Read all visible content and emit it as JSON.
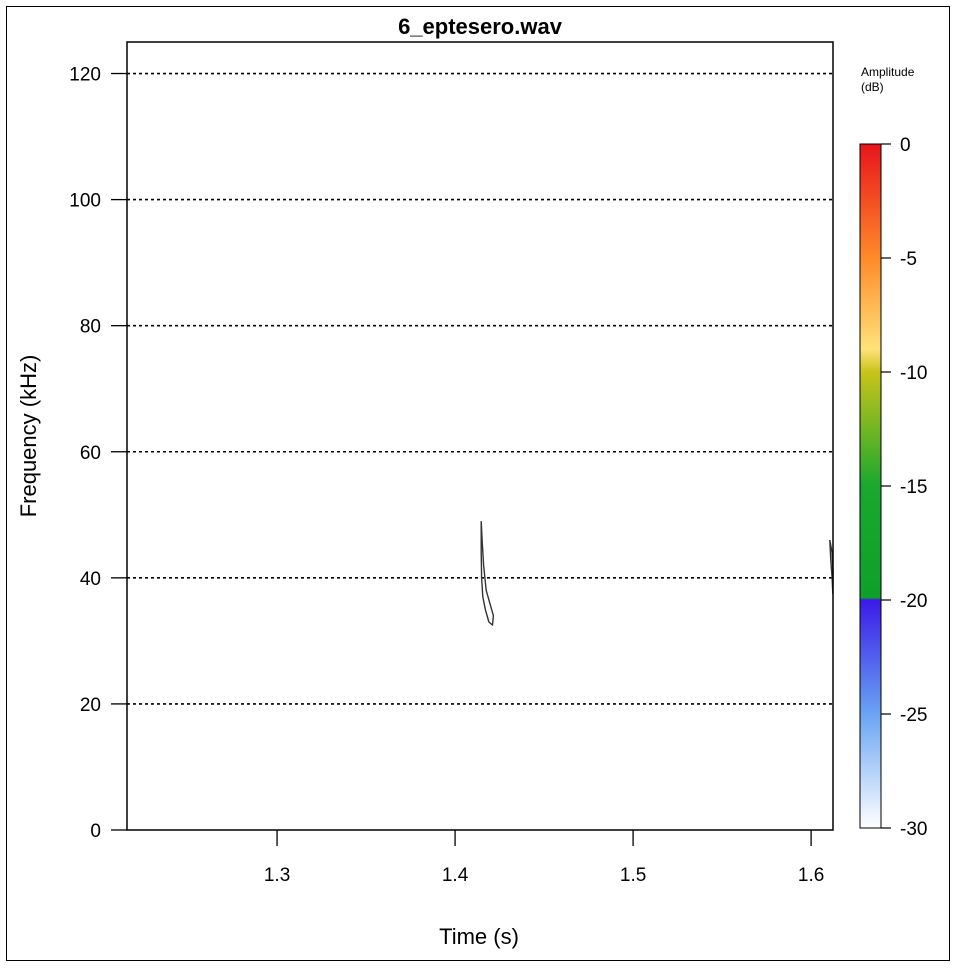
{
  "chart_data": {
    "type": "spectrogram",
    "title": "6_eptesero.wav",
    "xlabel": "Time (s)",
    "ylabel": "Frequency (kHz)",
    "xlim": [
      1.2157,
      1.6123
    ],
    "ylim": [
      0,
      125
    ],
    "x_ticks": [
      1.3,
      1.4,
      1.5,
      1.6
    ],
    "x_tick_labels": [
      "1.3",
      "1.4",
      "1.5",
      "1.6"
    ],
    "y_ticks": [
      0,
      20,
      40,
      60,
      80,
      100,
      120
    ],
    "y_tick_labels": [
      "0",
      "20",
      "40",
      "60",
      "80",
      "100",
      "120"
    ],
    "grid": "horizontal dotted lines at 20, 40, 60, 80, 100, 120 kHz",
    "colorbar": {
      "title_line1": "Amplitude",
      "title_line2": "(dB)",
      "ticks": [
        0,
        -5,
        -10,
        -15,
        -20,
        -25,
        -30
      ],
      "tick_labels": [
        "0",
        "-5",
        "-10",
        "-15",
        "-20",
        "-25",
        "-30"
      ],
      "range": [
        -30,
        0
      ],
      "stops": [
        {
          "value": 0,
          "color": "#e8141c"
        },
        {
          "value": -5,
          "color": "#ff8a2a"
        },
        {
          "value": -9,
          "color": "#ffe27a"
        },
        {
          "value": -10,
          "color": "#c8c41a"
        },
        {
          "value": -15,
          "color": "#1aa82e"
        },
        {
          "value": -19.9,
          "color": "#0fa02a"
        },
        {
          "value": -20,
          "color": "#3a1ae8"
        },
        {
          "value": -25,
          "color": "#6aa4f4"
        },
        {
          "value": -30,
          "color": "#ffffff"
        }
      ]
    },
    "contours": [
      {
        "name": "call-1",
        "points": [
          [
            1.4147,
            49
          ],
          [
            1.4147,
            44
          ],
          [
            1.4149,
            40
          ],
          [
            1.4156,
            37
          ],
          [
            1.417,
            35
          ],
          [
            1.419,
            33
          ],
          [
            1.421,
            32.5
          ],
          [
            1.4215,
            34
          ],
          [
            1.4195,
            36
          ],
          [
            1.4175,
            38
          ],
          [
            1.416,
            42
          ],
          [
            1.4152,
            46
          ],
          [
            1.4147,
            49
          ]
        ]
      },
      {
        "name": "call-2",
        "points": [
          [
            1.6105,
            46
          ],
          [
            1.611,
            43
          ],
          [
            1.6118,
            40
          ],
          [
            1.6122,
            37.5
          ],
          [
            1.6123,
            41
          ],
          [
            1.6118,
            44
          ],
          [
            1.6105,
            46
          ]
        ]
      }
    ]
  }
}
